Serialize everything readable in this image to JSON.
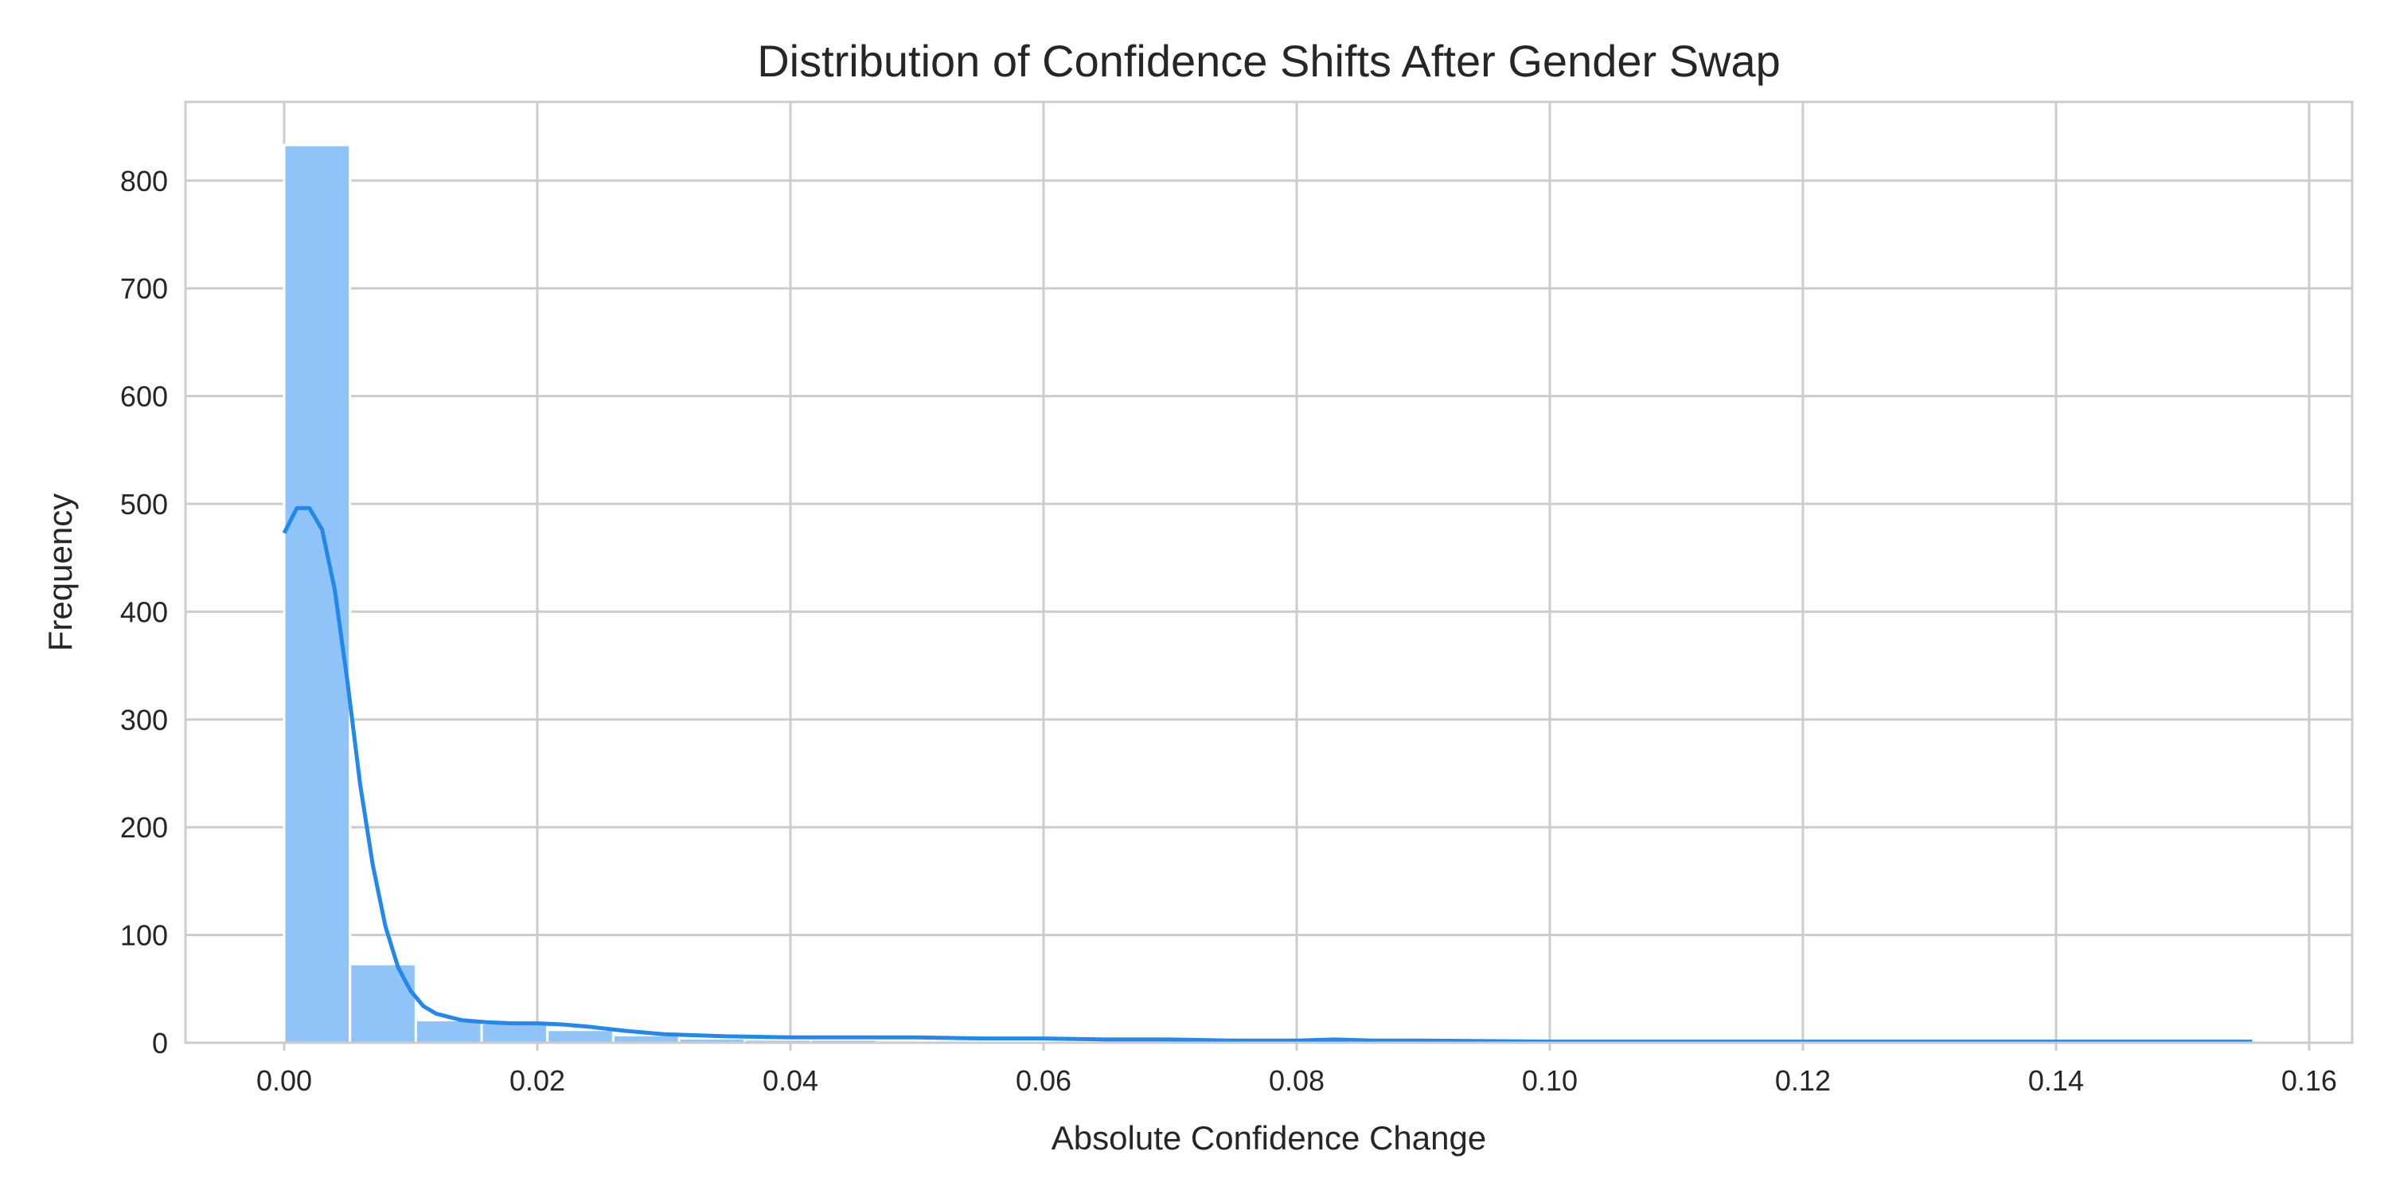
{
  "chart_data": {
    "type": "bar",
    "title": "Distribution of Confidence Shifts After Gender Swap",
    "xlabel": "Absolute Confidence Change",
    "ylabel": "Frequency",
    "xlim": [
      -0.0078,
      0.1634
    ],
    "ylim": [
      0,
      873
    ],
    "xticks": [
      0.0,
      0.02,
      0.04,
      0.06,
      0.08,
      0.1,
      0.12,
      0.14,
      0.16
    ],
    "xtick_labels": [
      "0.00",
      "0.02",
      "0.04",
      "0.06",
      "0.08",
      "0.10",
      "0.12",
      "0.14",
      "0.16"
    ],
    "yticks": [
      0,
      100,
      200,
      300,
      400,
      500,
      600,
      700,
      800
    ],
    "ytick_labels": [
      "0",
      "100",
      "200",
      "300",
      "400",
      "500",
      "600",
      "700",
      "800"
    ],
    "grid": true,
    "bar_color": "#90c4f8",
    "line_color": "#2288ee",
    "histogram": {
      "bin_width": 0.0052,
      "bins_start": [
        0.0,
        0.0052,
        0.0104,
        0.0156,
        0.0208,
        0.026,
        0.0312,
        0.0364,
        0.0416,
        0.0468,
        0.052,
        0.0572,
        0.0624,
        0.0676,
        0.0728,
        0.078,
        0.0832,
        0.0884,
        0.0936,
        0.0988,
        0.104,
        0.1092,
        0.1144,
        0.1196,
        0.1248,
        0.13,
        0.1352,
        0.1404,
        0.1456,
        0.1508
      ],
      "values": [
        833,
        73,
        21,
        18,
        12,
        7,
        4,
        3,
        3,
        2,
        2,
        1,
        1,
        1,
        1,
        0,
        1,
        0,
        0,
        0,
        0,
        0,
        0,
        0,
        0,
        1,
        0,
        0,
        0,
        1
      ]
    },
    "kde": {
      "x": [
        0.0,
        0.001,
        0.002,
        0.003,
        0.004,
        0.005,
        0.006,
        0.007,
        0.008,
        0.009,
        0.01,
        0.011,
        0.012,
        0.014,
        0.016,
        0.018,
        0.02,
        0.022,
        0.024,
        0.027,
        0.03,
        0.035,
        0.04,
        0.045,
        0.05,
        0.055,
        0.06,
        0.065,
        0.07,
        0.075,
        0.08,
        0.083,
        0.086,
        0.09,
        0.1,
        0.11,
        0.12,
        0.13,
        0.14,
        0.15,
        0.1555
      ],
      "y": [
        473,
        496,
        496,
        476,
        420,
        335,
        240,
        165,
        108,
        70,
        48,
        34,
        27,
        21,
        19,
        18,
        18,
        17,
        15,
        11,
        8,
        6,
        5,
        5,
        5,
        4,
        4,
        3,
        3,
        2,
        2,
        3,
        2,
        2,
        1,
        1,
        1,
        1,
        1,
        1,
        1
      ]
    }
  }
}
